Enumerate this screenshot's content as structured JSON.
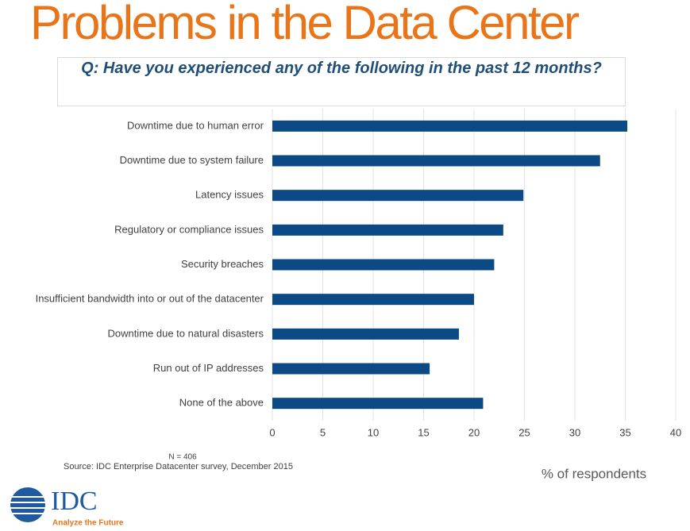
{
  "chart_data": {
    "type": "hbar",
    "title": "Problems in the Data Center",
    "subtitle": "Q: Have you experienced any of the following in the past 12 months?",
    "categories": [
      "Downtime due to human error",
      "Downtime due to system failure",
      "Latency issues",
      "Regulatory or compliance issues",
      "Security breaches",
      "Insufficient bandwidth into or out of the datacenter",
      "Downtime due to natural disasters",
      "Run out of IP addresses",
      "None of the above"
    ],
    "values": [
      35.2,
      32.5,
      24.9,
      22.9,
      22.0,
      20.0,
      18.5,
      15.6,
      20.9
    ],
    "color": "#0b4a85",
    "xlim": [
      0,
      40
    ],
    "xticks": [
      0,
      5,
      10,
      15,
      20,
      25,
      30,
      35,
      40
    ],
    "grid": true,
    "x_label": "% of respondents",
    "note": "N = 406",
    "source": "Source: IDC Enterprise Datacenter survey, December 2015"
  },
  "logo": {
    "name": "IDC",
    "tagline": "Analyze the Future"
  }
}
